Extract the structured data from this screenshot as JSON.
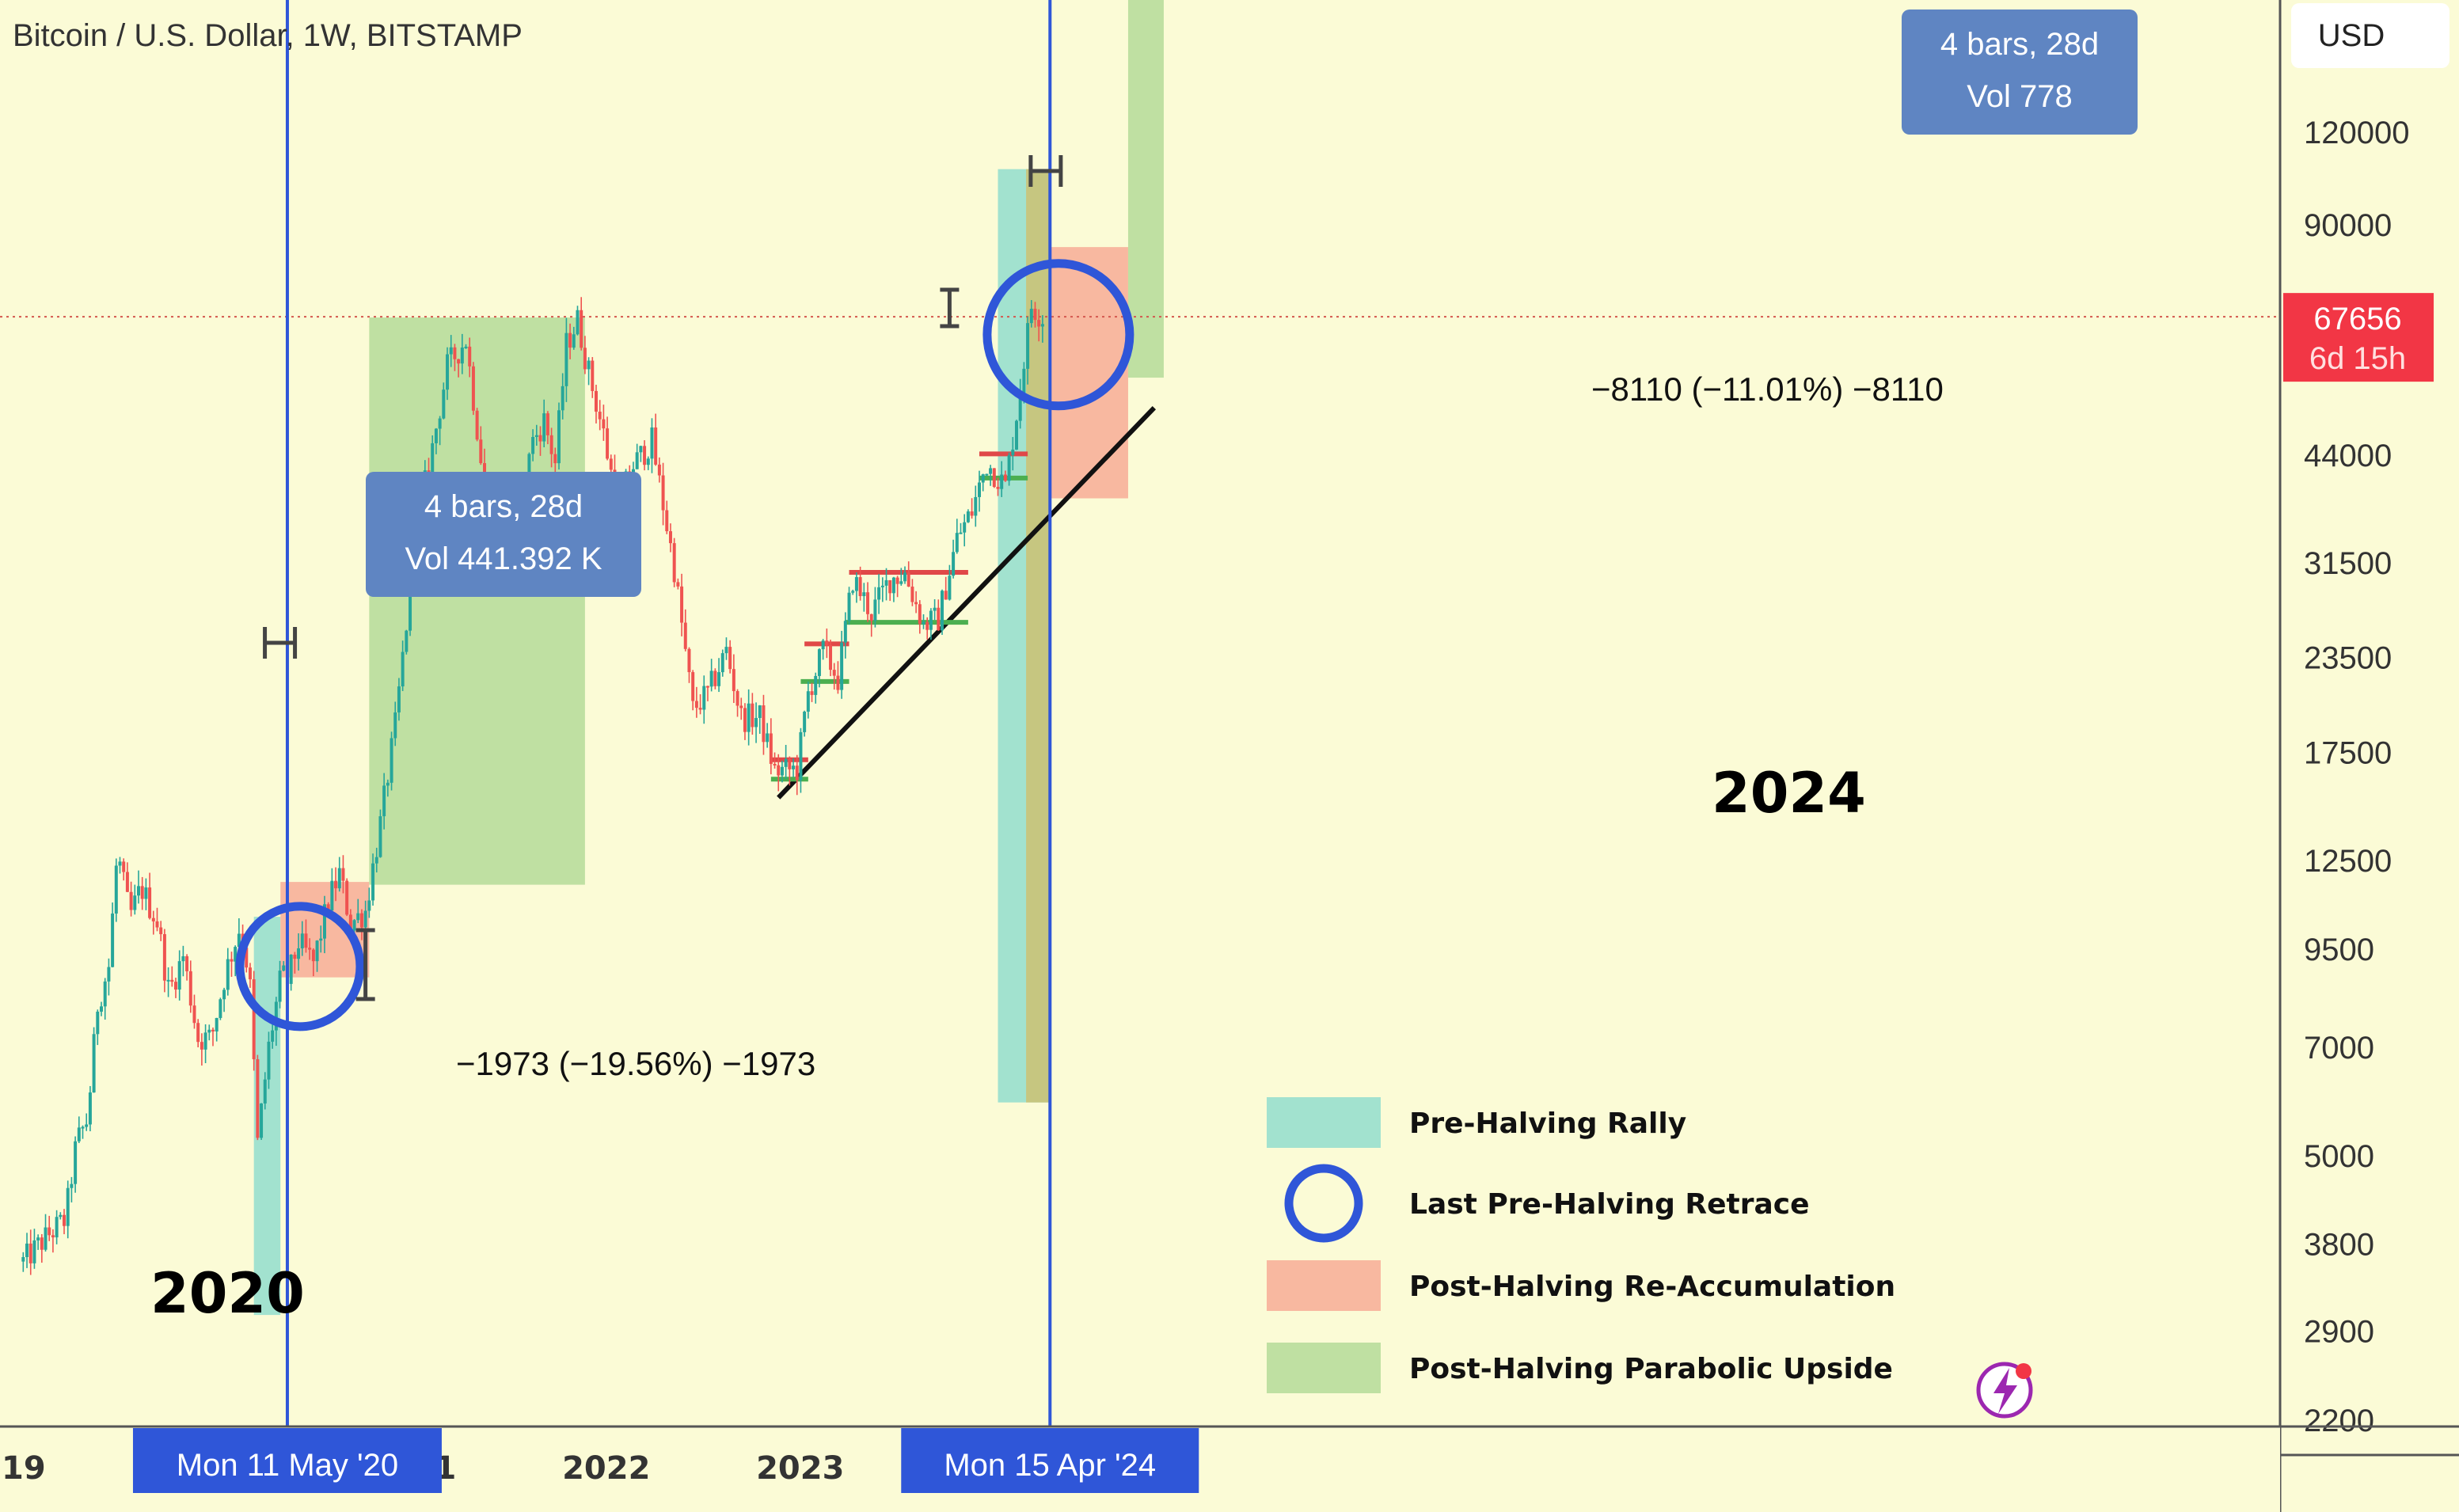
{
  "chart_data": {
    "type": "candlestick",
    "title": "Bitcoin / U.S. Dollar, 1W, BITSTAMP",
    "currency": "USD",
    "scale": "log",
    "ylim": [
      2000,
      140000
    ],
    "y_ticks": [
      120000,
      90000,
      44000,
      31500,
      23500,
      17500,
      12500,
      9500,
      7000,
      5000,
      3800,
      2900,
      2200
    ],
    "x_ticks": [
      {
        "label": "19",
        "date": "2019-01-01"
      },
      {
        "label": "2",
        "date": "2020-01-01"
      },
      {
        "label": "2021",
        "date": "2021-01-01"
      },
      {
        "label": "2022",
        "date": "2022-01-01"
      },
      {
        "label": "2023",
        "date": "2023-01-01"
      },
      {
        "label": "2",
        "date": "2024-01-01"
      }
    ],
    "last_price": {
      "value": "67656",
      "countdown": "6d 15h"
    },
    "price_path": [
      {
        "date": "2018-12-31",
        "price": 3600
      },
      {
        "date": "2019-02-15",
        "price": 3900
      },
      {
        "date": "2019-03-20",
        "price": 4100
      },
      {
        "date": "2019-04-10",
        "price": 5200
      },
      {
        "date": "2019-05-01",
        "price": 5600
      },
      {
        "date": "2019-05-20",
        "price": 8000
      },
      {
        "date": "2019-06-10",
        "price": 9000
      },
      {
        "date": "2019-06-26",
        "price": 12800
      },
      {
        "date": "2019-07-20",
        "price": 10500
      },
      {
        "date": "2019-08-10",
        "price": 11500
      },
      {
        "date": "2019-09-10",
        "price": 10300
      },
      {
        "date": "2019-10-01",
        "price": 8300
      },
      {
        "date": "2019-10-28",
        "price": 9300
      },
      {
        "date": "2019-11-25",
        "price": 7200
      },
      {
        "date": "2019-12-20",
        "price": 7200
      },
      {
        "date": "2020-01-15",
        "price": 8800
      },
      {
        "date": "2020-02-12",
        "price": 10200
      },
      {
        "date": "2020-03-01",
        "price": 8700
      },
      {
        "date": "2020-03-16",
        "price": 5200
      },
      {
        "date": "2020-04-06",
        "price": 7000
      },
      {
        "date": "2020-04-30",
        "price": 8800
      },
      {
        "date": "2020-05-11",
        "price": 8600
      },
      {
        "date": "2020-06-01",
        "price": 9700
      },
      {
        "date": "2020-06-29",
        "price": 9100
      },
      {
        "date": "2020-07-27",
        "price": 11000
      },
      {
        "date": "2020-08-17",
        "price": 12000
      },
      {
        "date": "2020-09-07",
        "price": 10300
      },
      {
        "date": "2020-10-05",
        "price": 10700
      },
      {
        "date": "2020-11-02",
        "price": 14000
      },
      {
        "date": "2020-11-30",
        "price": 19000
      },
      {
        "date": "2020-12-28",
        "price": 29000
      },
      {
        "date": "2021-01-11",
        "price": 36000
      },
      {
        "date": "2021-02-08",
        "price": 45000
      },
      {
        "date": "2021-03-08",
        "price": 58000
      },
      {
        "date": "2021-04-12",
        "price": 63000
      },
      {
        "date": "2021-05-17",
        "price": 40000
      },
      {
        "date": "2021-06-21",
        "price": 33000
      },
      {
        "date": "2021-07-19",
        "price": 30000
      },
      {
        "date": "2021-08-09",
        "price": 45000
      },
      {
        "date": "2021-09-06",
        "price": 49000
      },
      {
        "date": "2021-09-27",
        "price": 43000
      },
      {
        "date": "2021-10-18",
        "price": 62000
      },
      {
        "date": "2021-11-08",
        "price": 67000
      },
      {
        "date": "2021-11-29",
        "price": 57000
      },
      {
        "date": "2021-12-27",
        "price": 47000
      },
      {
        "date": "2022-01-24",
        "price": 37000
      },
      {
        "date": "2022-02-14",
        "price": 42000
      },
      {
        "date": "2022-03-28",
        "price": 46000
      },
      {
        "date": "2022-05-09",
        "price": 31000
      },
      {
        "date": "2022-06-13",
        "price": 20000
      },
      {
        "date": "2022-07-11",
        "price": 21000
      },
      {
        "date": "2022-08-15",
        "price": 24000
      },
      {
        "date": "2022-09-12",
        "price": 19500
      },
      {
        "date": "2022-10-17",
        "price": 19500
      },
      {
        "date": "2022-11-14",
        "price": 16500
      },
      {
        "date": "2022-12-26",
        "price": 16600
      },
      {
        "date": "2023-01-16",
        "price": 21000
      },
      {
        "date": "2023-02-13",
        "price": 24000
      },
      {
        "date": "2023-03-13",
        "price": 22000
      },
      {
        "date": "2023-04-10",
        "price": 30000
      },
      {
        "date": "2023-05-15",
        "price": 27000
      },
      {
        "date": "2023-06-19",
        "price": 30000
      },
      {
        "date": "2023-07-17",
        "price": 30500
      },
      {
        "date": "2023-08-21",
        "price": 26000
      },
      {
        "date": "2023-09-18",
        "price": 26500
      },
      {
        "date": "2023-10-23",
        "price": 34000
      },
      {
        "date": "2023-11-20",
        "price": 37000
      },
      {
        "date": "2023-12-18",
        "price": 43000
      },
      {
        "date": "2024-01-22",
        "price": 40000
      },
      {
        "date": "2024-02-12",
        "price": 50000
      },
      {
        "date": "2024-03-11",
        "price": 70000
      },
      {
        "date": "2024-04-01",
        "price": 67656
      }
    ]
  },
  "annotations": {
    "measure_2020": {
      "line1": "4 bars, 28d",
      "line2": "Vol 441.392 K"
    },
    "measure_2024": {
      "line1": "4 bars, 28d",
      "line2": "Vol 778"
    },
    "halving_2020": {
      "label": "Mon 11 May '20",
      "date": "2020-05-11"
    },
    "halving_2024": {
      "label": "Mon 15 Apr '24",
      "date": "2024-04-15"
    },
    "retrace_2020": {
      "label": "−1973 (−19.56%) −1973"
    },
    "retrace_2024": {
      "label": "−8110 (−11.01%) −8110"
    },
    "cycle_2020": {
      "label": "2020"
    },
    "cycle_2024": {
      "label": "2024"
    }
  },
  "legend": [
    {
      "label": "Pre-Halving Rally",
      "swatch": "rect",
      "color": "#a2e2cf"
    },
    {
      "label": "Last Pre-Halving Retrace",
      "swatch": "circle",
      "color": "#2f56d8"
    },
    {
      "label": "Post-Halving Re-Accumulation",
      "swatch": "rect",
      "color": "#f8b8a0"
    },
    {
      "label": "Post-Halving Parabolic Upside",
      "swatch": "rect",
      "color": "#bfe0a2"
    }
  ],
  "colors": {
    "background": "#fbfbd6",
    "up_candle": "#26a69a",
    "down_candle": "#ef5350",
    "halving_line": "#2f56d8",
    "tooltip_bg": "#5f85c2",
    "price_label": "#f23645",
    "pre_halving": "#a2e2cf",
    "re_accumulation": "#f8b8a0",
    "parabolic": "#bfe0a2"
  },
  "icons": {
    "alert": "lightning-icon"
  }
}
